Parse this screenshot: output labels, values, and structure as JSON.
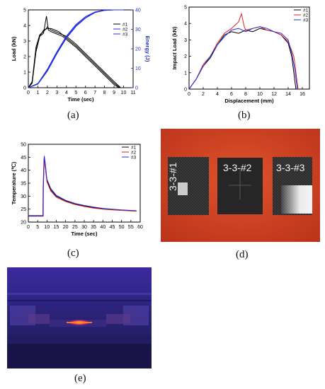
{
  "captions": {
    "a": "(a)",
    "b": "(b)",
    "c": "(c)",
    "d": "(d)",
    "e": "(e)"
  },
  "chart_data": [
    {
      "id": "a",
      "type": "line",
      "xlabel": "Time (sec)",
      "ylabel": "Load (kN)",
      "y2label": "Energy (J)",
      "xlim": [
        0,
        11
      ],
      "ylim": [
        0,
        5
      ],
      "y2lim": [
        0,
        40
      ],
      "xticks": [
        "0",
        "1",
        "2",
        "3",
        "4",
        "5",
        "6",
        "7",
        "8",
        "9",
        "10",
        "11"
      ],
      "yticks": [
        "0",
        "1",
        "2",
        "3",
        "4",
        "5"
      ],
      "y2ticks": [
        "0",
        "10",
        "20",
        "30",
        "40"
      ],
      "legend": [
        "#1",
        "#2",
        "#3"
      ],
      "legend_position": "top-right",
      "load_series": [
        {
          "name": "#1",
          "x": [
            0,
            0.4,
            0.8,
            1.2,
            1.6,
            2.0,
            2.4,
            2.8,
            3.2,
            3.6,
            4.0,
            5,
            6,
            7,
            8,
            9,
            9.6
          ],
          "y": [
            0,
            0.4,
            2.6,
            3.4,
            3.6,
            3.9,
            3.7,
            3.6,
            3.5,
            3.4,
            3.2,
            2.7,
            2.1,
            1.5,
            0.9,
            0.3,
            0
          ]
        },
        {
          "name": "#2",
          "x": [
            0,
            0.4,
            0.8,
            1.2,
            1.6,
            1.9,
            2.1,
            2.4,
            2.8,
            3.2,
            3.6,
            4.0,
            5,
            6,
            7,
            8,
            9,
            9.5
          ],
          "y": [
            0,
            0.3,
            2.3,
            3.3,
            3.5,
            4.6,
            3.7,
            3.6,
            3.5,
            3.4,
            3.3,
            3.1,
            2.6,
            2.0,
            1.4,
            0.8,
            0.2,
            0
          ]
        },
        {
          "name": "#3",
          "x": [
            0,
            0.4,
            0.8,
            1.2,
            1.6,
            2.0,
            2.4,
            2.8,
            3.2,
            3.6,
            4.0,
            5,
            6,
            7,
            8,
            9,
            9.7
          ],
          "y": [
            0,
            0.3,
            2.4,
            3.3,
            3.7,
            3.8,
            3.8,
            3.7,
            3.6,
            3.4,
            3.3,
            2.8,
            2.2,
            1.6,
            1.0,
            0.4,
            0
          ]
        }
      ],
      "energy_series": [
        {
          "name": "#1",
          "x": [
            0,
            1,
            2,
            3,
            4,
            5,
            6,
            7,
            8,
            9,
            10
          ],
          "y": [
            0,
            2,
            9,
            18,
            26,
            32,
            36,
            38.8,
            39.8,
            40,
            40
          ]
        },
        {
          "name": "#2",
          "x": [
            0,
            1,
            2,
            3,
            4,
            5,
            6,
            7,
            8,
            9,
            10
          ],
          "y": [
            0,
            2.2,
            9.5,
            18.5,
            26.5,
            32.5,
            36.5,
            39,
            39.9,
            40,
            40
          ]
        },
        {
          "name": "#3",
          "x": [
            0,
            1,
            2,
            3,
            4,
            5,
            6,
            7,
            8,
            9,
            10
          ],
          "y": [
            0,
            1.8,
            8.5,
            17.5,
            25.5,
            31.5,
            35.8,
            38.6,
            39.7,
            40,
            40
          ]
        }
      ]
    },
    {
      "id": "b",
      "type": "line",
      "xlabel": "Displacement (mm)",
      "ylabel": "Impact Load (kN)",
      "xlim": [
        0,
        17
      ],
      "ylim": [
        0,
        5
      ],
      "xticks": [
        "0",
        "2",
        "4",
        "6",
        "8",
        "10",
        "12",
        "14",
        "16"
      ],
      "yticks": [
        "0",
        "1",
        "2",
        "3",
        "4",
        "5"
      ],
      "legend": [
        "#1",
        "#2",
        "#3"
      ],
      "legend_position": "top-right",
      "series": [
        {
          "name": "#1",
          "x": [
            0,
            0.5,
            1,
            2,
            3,
            4,
            5,
            6,
            7,
            8,
            9,
            10,
            11,
            12,
            13,
            14,
            14.5,
            14.8,
            15,
            15.1
          ],
          "y": [
            0,
            0.3,
            0.6,
            1.4,
            1.9,
            2.7,
            3.3,
            3.5,
            3.4,
            3.6,
            3.5,
            3.7,
            3.6,
            3.5,
            3.3,
            2.8,
            2.0,
            1.0,
            0.3,
            0
          ]
        },
        {
          "name": "#2",
          "x": [
            0,
            0.5,
            1,
            2,
            3,
            4,
            5,
            6,
            7,
            7.4,
            7.8,
            8,
            9,
            10,
            11,
            12,
            13,
            14,
            14.8,
            15.1,
            15.3,
            15.4
          ],
          "y": [
            0,
            0.3,
            0.6,
            1.5,
            2.0,
            2.8,
            3.4,
            3.7,
            4.1,
            4.6,
            3.8,
            3.6,
            3.7,
            3.8,
            3.6,
            3.5,
            3.3,
            2.9,
            2.0,
            1.0,
            0.3,
            0
          ]
        },
        {
          "name": "#3",
          "x": [
            0,
            0.5,
            1,
            2,
            3,
            4,
            5,
            6,
            7,
            8,
            9,
            10,
            11,
            12,
            13,
            14,
            14.6,
            15,
            15.2,
            15.3
          ],
          "y": [
            0,
            0.3,
            0.6,
            1.4,
            2.0,
            2.7,
            3.2,
            3.6,
            3.7,
            3.5,
            3.7,
            3.8,
            3.7,
            3.5,
            3.4,
            3.0,
            2.0,
            1.0,
            0.3,
            0
          ]
        }
      ]
    },
    {
      "id": "c",
      "type": "line",
      "xlabel": "Time (sec)",
      "ylabel": "Temperature (℃)",
      "xlim": [
        0,
        60
      ],
      "ylim": [
        20,
        50
      ],
      "xticks": [
        "0",
        "5",
        "10",
        "15",
        "20",
        "25",
        "30",
        "35",
        "40",
        "45",
        "50",
        "55",
        "60"
      ],
      "yticks": [
        "20",
        "25",
        "30",
        "35",
        "40",
        "45",
        "50"
      ],
      "legend": [
        "#1",
        "#2",
        "#3"
      ],
      "legend_position": "top-right",
      "series": [
        {
          "name": "#1",
          "x": [
            0,
            7.9,
            8,
            8.5,
            9,
            10,
            12,
            15,
            20,
            25,
            30,
            35,
            40,
            45,
            50,
            55,
            58
          ],
          "y": [
            22.3,
            22.3,
            33,
            45,
            42,
            36,
            32.5,
            30,
            28.2,
            27,
            26.2,
            25.6,
            25.1,
            24.8,
            24.6,
            24.4,
            24.3
          ]
        },
        {
          "name": "#2",
          "x": [
            0,
            7.8,
            7.9,
            8.4,
            9,
            10,
            12,
            15,
            20,
            25,
            30,
            35,
            40,
            45,
            50,
            55,
            58
          ],
          "y": [
            22.4,
            22.4,
            33,
            44.5,
            41.5,
            35.5,
            32,
            29.6,
            27.9,
            26.8,
            26.0,
            25.4,
            25.0,
            24.7,
            24.5,
            24.3,
            24.2
          ]
        },
        {
          "name": "#3",
          "x": [
            0,
            8.0,
            8.1,
            8.6,
            9.1,
            10,
            12,
            15,
            20,
            25,
            30,
            35,
            40,
            45,
            50,
            55,
            58
          ],
          "y": [
            22.5,
            22.5,
            34,
            45.5,
            42.5,
            36.5,
            33,
            30.3,
            28.4,
            27.2,
            26.4,
            25.8,
            25.3,
            25.0,
            24.7,
            24.5,
            24.4
          ]
        }
      ]
    }
  ],
  "specimens": {
    "labels": [
      "3-3-#1",
      "3-3-#2",
      "3-3-#3"
    ]
  },
  "colors": {
    "series1": "#000000",
    "series2": "#e02020",
    "series3": "#2030e0",
    "photo_background": "#d8421f",
    "thermal_bg": "#2a1a7a"
  }
}
